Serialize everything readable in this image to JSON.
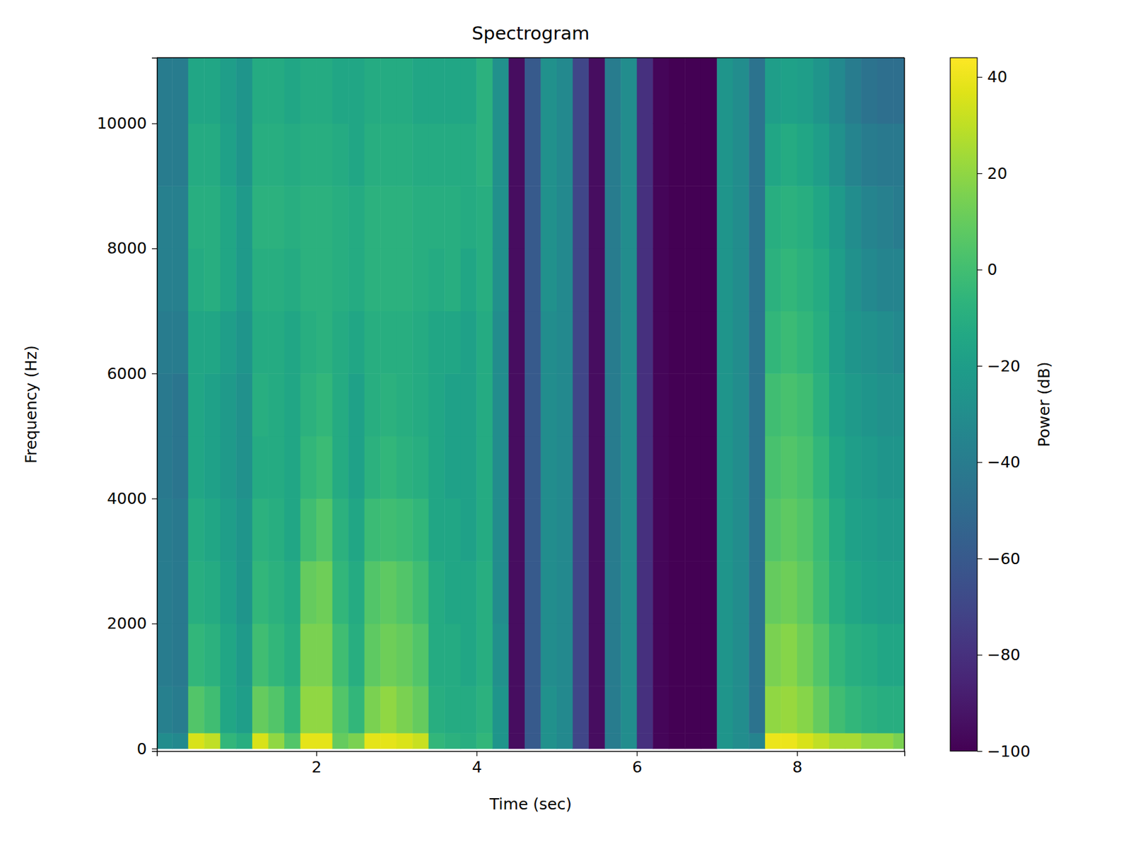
{
  "chart_data": {
    "type": "heatmap",
    "title": "Spectrogram",
    "x_label": "Time (sec)",
    "y_label": "Frequency (Hz)",
    "xlim": [
      0.01,
      9.34
    ],
    "ylim": [
      -40,
      11050
    ],
    "xticks": [
      2,
      4,
      6,
      8
    ],
    "yticks": [
      0,
      2000,
      4000,
      6000,
      8000,
      10000
    ],
    "x_bins": [
      0,
      0.2,
      0.4,
      0.6,
      0.8,
      1.0,
      1.2,
      1.4,
      1.6,
      1.8,
      2.0,
      2.2,
      2.4,
      2.6,
      2.8,
      3.0,
      3.2,
      3.4,
      3.6,
      3.8,
      4.0,
      4.2,
      4.4,
      4.6,
      4.8,
      5.0,
      5.2,
      5.4,
      5.6,
      5.8,
      6.0,
      6.2,
      6.4,
      6.6,
      6.8,
      7.0,
      7.2,
      7.4,
      7.6,
      7.8,
      8.0,
      8.2,
      8.4,
      8.6,
      8.8,
      9.0,
      9.2,
      9.4
    ],
    "y_bins": [
      0,
      250,
      1000,
      2000,
      3000,
      4000,
      5000,
      6000,
      7000,
      8000,
      9000,
      10000,
      11050
    ],
    "cells": [
      [
        -30,
        -38,
        -40,
        -40,
        -40,
        -42,
        -42,
        -40,
        -38,
        -38,
        -40,
        -40
      ],
      [
        -32,
        -40,
        -42,
        -42,
        -42,
        -44,
        -44,
        -40,
        -38,
        -38,
        -40,
        -40
      ],
      [
        35,
        5,
        -5,
        -10,
        -12,
        -15,
        -15,
        -15,
        -12,
        -10,
        -12,
        -15
      ],
      [
        30,
        0,
        -8,
        -12,
        -15,
        -18,
        -18,
        -15,
        -10,
        -10,
        -12,
        -15
      ],
      [
        -5,
        -15,
        -15,
        -18,
        -20,
        -22,
        -22,
        -20,
        -15,
        -15,
        -18,
        -20
      ],
      [
        -10,
        -20,
        -22,
        -25,
        -25,
        -28,
        -28,
        -25,
        -22,
        -22,
        -25,
        -25
      ],
      [
        35,
        10,
        0,
        -5,
        -8,
        -12,
        -10,
        -12,
        -10,
        -8,
        -10,
        -12
      ],
      [
        20,
        5,
        -5,
        -8,
        -10,
        -12,
        -12,
        -12,
        -10,
        -8,
        -10,
        -12
      ],
      [
        5,
        -5,
        -10,
        -12,
        -15,
        -15,
        -15,
        -15,
        -12,
        -10,
        -12,
        -15
      ],
      [
        38,
        20,
        15,
        10,
        0,
        -5,
        -8,
        -10,
        -8,
        -8,
        -10,
        -12
      ],
      [
        38,
        20,
        15,
        12,
        5,
        -2,
        -5,
        -8,
        -8,
        -8,
        -10,
        -12
      ],
      [
        10,
        5,
        0,
        -5,
        -8,
        -12,
        -12,
        -12,
        -10,
        -10,
        -12,
        -15
      ],
      [
        15,
        -5,
        -10,
        -12,
        -15,
        -18,
        -18,
        -15,
        -12,
        -12,
        -15,
        -15
      ],
      [
        38,
        15,
        8,
        5,
        -2,
        -8,
        -10,
        -10,
        -8,
        -8,
        -10,
        -12
      ],
      [
        38,
        20,
        12,
        8,
        0,
        -5,
        -8,
        -10,
        -8,
        -8,
        -10,
        -12
      ],
      [
        36,
        15,
        10,
        5,
        -2,
        -8,
        -10,
        -10,
        -8,
        -8,
        -10,
        -12
      ],
      [
        32,
        10,
        5,
        0,
        -5,
        -10,
        -12,
        -12,
        -10,
        -10,
        -12,
        -15
      ],
      [
        -5,
        -10,
        -12,
        -12,
        -15,
        -15,
        -15,
        -15,
        -12,
        -10,
        -12,
        -15
      ],
      [
        -8,
        -12,
        -12,
        -15,
        -15,
        -18,
        -18,
        -15,
        -10,
        -10,
        -12,
        -15
      ],
      [
        -10,
        -12,
        -15,
        -15,
        -18,
        -18,
        -18,
        -18,
        -15,
        -12,
        -12,
        -15
      ],
      [
        -5,
        -8,
        -10,
        -10,
        -12,
        -12,
        -12,
        -12,
        -10,
        -10,
        -8,
        -8
      ],
      [
        -25,
        -25,
        -28,
        -30,
        -30,
        -30,
        -30,
        -30,
        -28,
        -28,
        -28,
        -28
      ],
      [
        -95,
        -95,
        -95,
        -95,
        -95,
        -95,
        -95,
        -95,
        -95,
        -95,
        -95,
        -95
      ],
      [
        -60,
        -60,
        -60,
        -60,
        -60,
        -60,
        -60,
        -60,
        -60,
        -60,
        -60,
        -60
      ],
      [
        -28,
        -28,
        -30,
        -30,
        -30,
        -30,
        -30,
        -30,
        -28,
        -28,
        -28,
        -28
      ],
      [
        -32,
        -32,
        -32,
        -32,
        -32,
        -32,
        -32,
        -32,
        -32,
        -32,
        -32,
        -32
      ],
      [
        -70,
        -70,
        -70,
        -70,
        -70,
        -70,
        -70,
        -70,
        -70,
        -70,
        -70,
        -70
      ],
      [
        -95,
        -95,
        -95,
        -95,
        -95,
        -95,
        -95,
        -95,
        -95,
        -95,
        -95,
        -95
      ],
      [
        -40,
        -40,
        -40,
        -40,
        -40,
        -40,
        -40,
        -40,
        -40,
        -40,
        -40,
        -40
      ],
      [
        -30,
        -30,
        -30,
        -30,
        -30,
        -30,
        -30,
        -30,
        -30,
        -30,
        -30,
        -30
      ],
      [
        -80,
        -80,
        -80,
        -80,
        -80,
        -80,
        -80,
        -80,
        -80,
        -80,
        -80,
        -80
      ],
      [
        -98,
        -98,
        -98,
        -98,
        -98,
        -98,
        -98,
        -98,
        -98,
        -98,
        -98,
        -98
      ],
      [
        -100,
        -100,
        -100,
        -100,
        -100,
        -100,
        -100,
        -100,
        -100,
        -100,
        -100,
        -100
      ],
      [
        -100,
        -100,
        -100,
        -100,
        -100,
        -100,
        -100,
        -100,
        -100,
        -100,
        -100,
        -100
      ],
      [
        -100,
        -100,
        -100,
        -100,
        -100,
        -100,
        -100,
        -100,
        -100,
        -100,
        -100,
        -100
      ],
      [
        -25,
        -25,
        -25,
        -25,
        -25,
        -25,
        -25,
        -25,
        -25,
        -25,
        -25,
        -25
      ],
      [
        -30,
        -30,
        -30,
        -30,
        -30,
        -30,
        -30,
        -30,
        -30,
        -30,
        -30,
        -30
      ],
      [
        -35,
        -45,
        -45,
        -45,
        -45,
        -45,
        -45,
        -45,
        -45,
        -45,
        -45,
        -45
      ],
      [
        40,
        20,
        15,
        10,
        5,
        2,
        0,
        -5,
        -8,
        -10,
        -15,
        -20
      ],
      [
        40,
        22,
        18,
        12,
        8,
        5,
        2,
        -2,
        -5,
        -8,
        -12,
        -18
      ],
      [
        35,
        18,
        12,
        8,
        5,
        2,
        0,
        -5,
        -8,
        -10,
        -15,
        -20
      ],
      [
        30,
        10,
        5,
        0,
        -2,
        -5,
        -8,
        -10,
        -12,
        -15,
        -20,
        -25
      ],
      [
        25,
        0,
        -5,
        -10,
        -12,
        -15,
        -18,
        -20,
        -20,
        -22,
        -28,
        -32
      ],
      [
        25,
        -5,
        -10,
        -15,
        -18,
        -20,
        -22,
        -25,
        -28,
        -30,
        -35,
        -40
      ],
      [
        20,
        -8,
        -12,
        -18,
        -20,
        -22,
        -25,
        -28,
        -32,
        -35,
        -40,
        -45
      ],
      [
        20,
        -10,
        -15,
        -20,
        -22,
        -25,
        -28,
        -30,
        -35,
        -38,
        -42,
        -48
      ],
      [
        15,
        -10,
        -15,
        -20,
        -22,
        -25,
        -28,
        -32,
        -35,
        -40,
        -42,
        -48
      ]
    ],
    "colorbar": {
      "label": "Power (dB)",
      "range": [
        -100,
        44
      ],
      "ticks": [
        {
          "value": -100,
          "label": "−100"
        },
        {
          "value": -80,
          "label": "−80"
        },
        {
          "value": -60,
          "label": "−60"
        },
        {
          "value": -40,
          "label": "−40"
        },
        {
          "value": -20,
          "label": "−20"
        },
        0,
        20,
        40
      ]
    }
  }
}
